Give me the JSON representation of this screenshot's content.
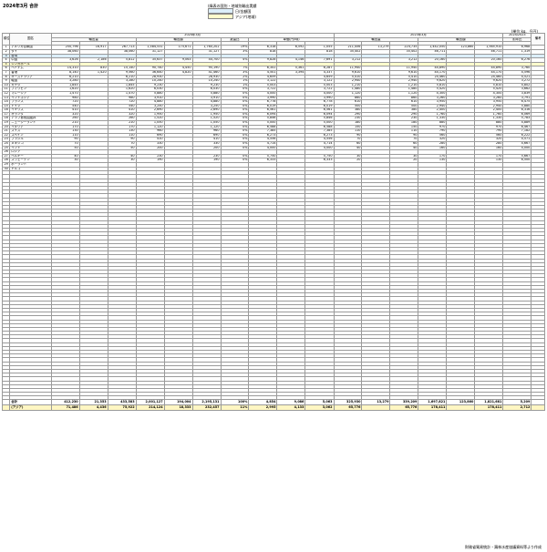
{
  "header": {
    "title": "2024年3月  合計",
    "legend_title": "(緯表の国別・地域別輸出実績",
    "legend_items": [
      {
        "label": "日/金額国",
        "color": "#dceefa"
      },
      {
        "label": "アジア(地域)",
        "color": "#fffbcc"
      }
    ],
    "unit": "(単位:kg、千円)"
  },
  "table": {
    "head_groups": {
      "rank": "順位",
      "country": "国名",
      "cur": "2024年3月",
      "prev": "2023年3月",
      "ytd": "2024/2023",
      "note": "備考"
    },
    "head_sub": {
      "qty": "輸出量",
      "amt": "輸出額",
      "share": "数量比",
      "price": "単価(円/kg)",
      "tqty": "輸出量",
      "tamt": "輸出額"
    },
    "head_cols": [
      "前年比",
      "前年比",
      "金額比",
      "前年比",
      "その他",
      "前年比"
    ],
    "rows": [
      {
        "r": "1",
        "n": "アメリカ合衆国",
        "v": [
          "250,796",
          "16,917",
          "267,713",
          "1,584,531",
          "175,671",
          "1,760,202",
          "19%",
          "6,318",
          "6,592",
          "1,055",
          "211,456",
          "13,279",
          "224,735",
          "1,442,050",
          "123,860",
          "1,565,910",
          "6,968"
        ]
      },
      {
        "r": "2",
        "n": "タイ",
        "v": [
          "38,060",
          "",
          "38,060",
          "31,127",
          "",
          "31,127",
          "3%",
          "818",
          "",
          "818",
          "35,402",
          "",
          "35,402",
          "46,711",
          "",
          "46,711",
          "1,319"
        ]
      },
      {
        "r": "3",
        "n": "台湾",
        "v": "hl",
        "c": "blue"
      },
      {
        "r": "4",
        "n": "中国",
        "v": [
          "3,626",
          "2,186",
          "5,812",
          "35,637",
          "9,063",
          "44,700",
          "4%",
          "9,828",
          "4,146",
          "7,691",
          "3,212",
          "",
          "3,212",
          "20,160",
          "",
          "20,160",
          "6,276"
        ]
      },
      {
        "r": "5",
        "n": "シンガポール",
        "v": "hl",
        "c": "yellow"
      },
      {
        "r": "6",
        "n": "ベトナム",
        "v": [
          "14,310",
          "830",
          "15,140",
          "90,740",
          "4,450",
          "95,190",
          "7%",
          "6,341",
          "5,361",
          "6,287",
          "11,940",
          "",
          "11,940",
          "44,890",
          "",
          "44,890",
          "3,760"
        ]
      },
      {
        "r": "7",
        "n": "香港",
        "v": [
          "8,140",
          "1,420",
          "9,560",
          "36,640",
          "4,820",
          "41,460",
          "3%",
          "4,501",
          "3,394",
          "4,337",
          "9,610",
          "",
          "9,610",
          "44,170",
          "",
          "44,170",
          "4,596"
        ]
      },
      {
        "r": "8",
        "n": "オーストラリア",
        "v": [
          "6,210",
          "",
          "6,210",
          "28,930",
          "",
          "28,930",
          "2%",
          "4,659",
          "",
          "4,659",
          "5,410",
          "",
          "5,410",
          "24,460",
          "",
          "24,460",
          "4,521"
        ]
      },
      {
        "r": "9",
        "n": "韓国",
        "v": [
          "3,280",
          "",
          "3,280",
          "10,240",
          "",
          "10,240",
          "1%",
          "3,122",
          "",
          "3,122",
          "2,940",
          "",
          "2,940",
          "9,620",
          "",
          "9,620",
          "3,272"
        ]
      },
      {
        "r": "10",
        "n": "カナダ",
        "v": [
          "1,845",
          "",
          "1,845",
          "9,230",
          "",
          "9,230",
          "1%",
          "5,003",
          "",
          "5,003",
          "1,210",
          "",
          "1,210",
          "5,810",
          "",
          "5,810",
          "4,802"
        ]
      },
      {
        "r": "11",
        "n": "フィリピン",
        "v": [
          "1,620",
          "",
          "1,620",
          "6,030",
          "",
          "6,030",
          "0%",
          "3,722",
          "",
          "3,722",
          "1,480",
          "",
          "1,480",
          "5,420",
          "",
          "5,420",
          "3,662"
        ]
      },
      {
        "r": "12",
        "n": "マレーシア",
        "v": [
          "1,470",
          "",
          "1,470",
          "5,880",
          "",
          "5,880",
          "0%",
          "4,000",
          "",
          "4,000",
          "1,120",
          "",
          "1,120",
          "4,300",
          "",
          "4,300",
          "3,839"
        ]
      },
      {
        "r": "13",
        "n": "インドネシア",
        "v": [
          "980",
          "",
          "980",
          "3,910",
          "",
          "3,910",
          "0%",
          "3,990",
          "",
          "3,990",
          "860",
          "",
          "860",
          "3,260",
          "",
          "3,260",
          "3,791"
        ]
      },
      {
        "r": "14",
        "n": "フランス",
        "v": [
          "720",
          "",
          "720",
          "4,880",
          "",
          "4,880",
          "0%",
          "6,778",
          "",
          "6,778",
          "610",
          "",
          "610",
          "3,950",
          "",
          "3,950",
          "6,475"
        ]
      },
      {
        "r": "15",
        "n": "ドイツ",
        "v": [
          "540",
          "",
          "540",
          "3,250",
          "",
          "3,250",
          "0%",
          "6,019",
          "",
          "6,019",
          "500",
          "",
          "500",
          "2,940",
          "",
          "2,940",
          "5,880"
        ]
      },
      {
        "r": "16",
        "n": "イギリス",
        "v": [
          "410",
          "",
          "410",
          "2,690",
          "",
          "2,690",
          "0%",
          "6,561",
          "",
          "6,561",
          "380",
          "",
          "380",
          "2,400",
          "",
          "2,400",
          "6,316"
        ]
      },
      {
        "r": "17",
        "n": "オランダ",
        "v": [
          "320",
          "",
          "320",
          "1,950",
          "",
          "1,950",
          "0%",
          "6,094",
          "",
          "6,094",
          "290",
          "",
          "290",
          "1,760",
          "",
          "1,760",
          "6,069"
        ]
      },
      {
        "r": "18",
        "n": "アラブ首長国連邦",
        "v": [
          "260",
          "",
          "260",
          "1,520",
          "",
          "1,520",
          "0%",
          "5,846",
          "",
          "5,846",
          "230",
          "",
          "230",
          "1,330",
          "",
          "1,330",
          "5,783"
        ]
      },
      {
        "r": "19",
        "n": "ニュージーランド",
        "v": [
          "210",
          "",
          "210",
          "1,050",
          "",
          "1,050",
          "0%",
          "5,000",
          "",
          "5,000",
          "180",
          "",
          "180",
          "880",
          "",
          "880",
          "4,889"
        ]
      },
      {
        "r": "20",
        "n": "イタリア",
        "v": [
          "170",
          "",
          "170",
          "1,120",
          "",
          "1,120",
          "0%",
          "6,588",
          "",
          "6,588",
          "150",
          "",
          "150",
          "970",
          "",
          "970",
          "6,467"
        ]
      },
      {
        "r": "21",
        "n": "スイス",
        "v": [
          "130",
          "",
          "130",
          "960",
          "",
          "960",
          "0%",
          "7,385",
          "",
          "7,385",
          "110",
          "",
          "110",
          "790",
          "",
          "790",
          "7,182"
        ]
      },
      {
        "r": "22",
        "n": "スペイン",
        "v": [
          "110",
          "",
          "110",
          "690",
          "",
          "690",
          "0%",
          "6,273",
          "",
          "6,273",
          "90",
          "",
          "90",
          "560",
          "",
          "560",
          "6,222"
        ]
      },
      {
        "r": "23",
        "n": "ブラジル",
        "v": [
          "90",
          "",
          "90",
          "410",
          "",
          "410",
          "0%",
          "4,556",
          "",
          "4,556",
          "70",
          "",
          "70",
          "320",
          "",
          "320",
          "4,571"
        ]
      },
      {
        "r": "24",
        "n": "メキシコ",
        "v": [
          "70",
          "",
          "70",
          "330",
          "",
          "330",
          "0%",
          "4,714",
          "",
          "4,714",
          "60",
          "",
          "60",
          "280",
          "",
          "280",
          "4,667"
        ]
      },
      {
        "r": "25",
        "n": "インド",
        "v": [
          "50",
          "",
          "50",
          "200",
          "",
          "200",
          "0%",
          "4,000",
          "",
          "4,000",
          "40",
          "",
          "40",
          "160",
          "",
          "160",
          "4,000"
        ]
      },
      {
        "r": "26",
        "n": "ロシア",
        "v": [
          "",
          "",
          "",
          "",
          "",
          "",
          "",
          "",
          "",
          "",
          "",
          "",
          "",
          "",
          "",
          "",
          ""
        ]
      },
      {
        "r": "27",
        "n": "ベルギー",
        "v": [
          "40",
          "",
          "40",
          "230",
          "",
          "230",
          "0%",
          "5,750",
          "",
          "5,750",
          "30",
          "",
          "30",
          "170",
          "",
          "170",
          "5,667"
        ]
      },
      {
        "r": "28",
        "n": "スウェーデン",
        "v": [
          "30",
          "",
          "30",
          "190",
          "",
          "190",
          "0%",
          "6,333",
          "",
          "6,333",
          "20",
          "",
          "20",
          "130",
          "",
          "130",
          "6,500"
        ]
      },
      {
        "r": "29",
        "n": "ポーランド",
        "v": [
          "",
          "",
          "",
          "",
          "",
          "",
          "",
          "",
          "",
          "",
          "",
          "",
          "",
          "",
          "",
          "",
          ""
        ]
      },
      {
        "r": "30",
        "n": "トルコ",
        "v": [
          "",
          "",
          "",
          "",
          "",
          "",
          "",
          "",
          "",
          "",
          "",
          "",
          "",
          "",
          "",
          "",
          ""
        ]
      }
    ],
    "summary": [
      {
        "n": "合計",
        "c": "total",
        "v": [
          "412,230",
          "21,353",
          "433,583",
          "2,001,127",
          "194,004",
          "2,195,131",
          "100%",
          "4,854",
          "9,086",
          "5,063",
          "325,930",
          "13,279",
          "339,209",
          "1,697,821",
          "123,860",
          "1,821,681",
          "5,209"
        ]
      },
      {
        "n": "(アジア)",
        "c": "asia",
        "v": [
          "71,486",
          "4,436",
          "75,922",
          "214,124",
          "18,333",
          "232,457",
          "11%",
          "2,995",
          "4,133",
          "3,062",
          "65,776",
          "",
          "65,776",
          "178,411",
          "",
          "178,411",
          "2,712"
        ]
      }
    ]
  },
  "footer": {
    "source": "財務省貿易統計・鶏林水産協議資料等より作成"
  }
}
